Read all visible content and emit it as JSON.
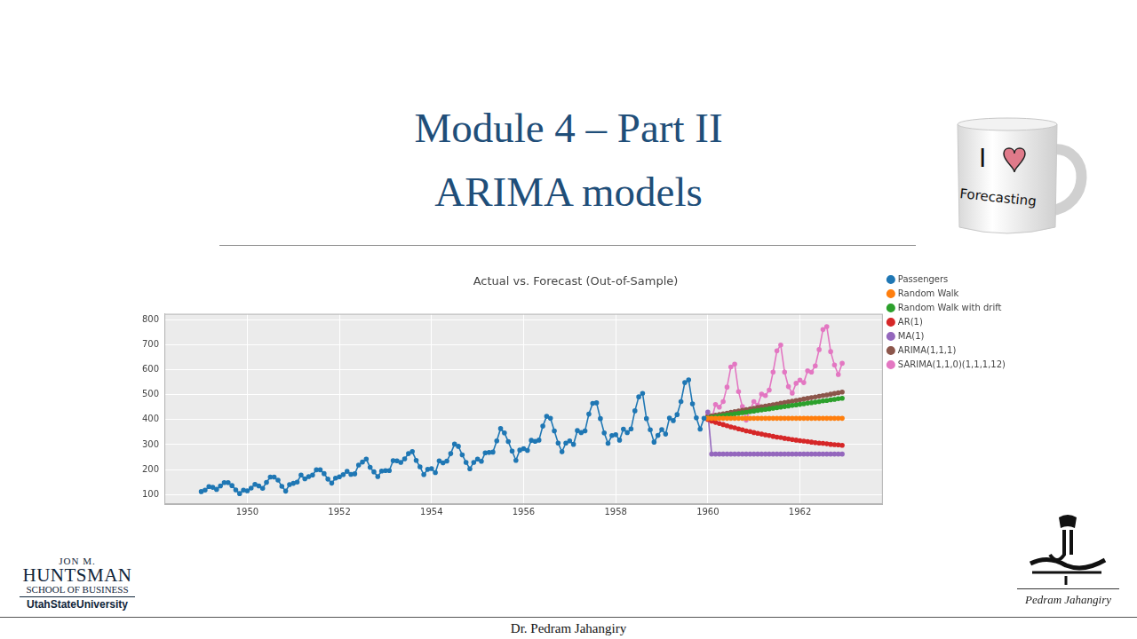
{
  "slide": {
    "title": [
      "Module 4 – Part II",
      "ARIMA models"
    ],
    "footer": "Dr. Pedram Jahangiry",
    "mug": [
      "I",
      "Forecasting"
    ],
    "school_logo": [
      "JON M.",
      "HUNTSMAN",
      "SCHOOL OF BUSINESS",
      "UtahStateUniversity"
    ],
    "signature": "Pedram Jahangiry"
  },
  "chart_data": {
    "type": "line",
    "title": "Actual vs. Forecast (Out-of-Sample)",
    "xlim": [
      1948.2,
      1963.8
    ],
    "xticks": [
      1950,
      1952,
      1954,
      1956,
      1958,
      1960,
      1962
    ],
    "ylim": [
      62,
      823
    ],
    "yticks": [
      100,
      200,
      300,
      400,
      500,
      600,
      700,
      800
    ],
    "grid": true,
    "legend": "right",
    "series": [
      {
        "name": "Passengers",
        "color": "#1f77b4",
        "marker": "circle",
        "line_style": "solid",
        "x": [
          1949,
          1949.083,
          1949.167,
          1949.25,
          1949.333,
          1949.417,
          1949.5,
          1949.583,
          1949.667,
          1949.75,
          1949.833,
          1949.917,
          1950,
          1950.083,
          1950.167,
          1950.25,
          1950.333,
          1950.417,
          1950.5,
          1950.583,
          1950.667,
          1950.75,
          1950.833,
          1950.917,
          1951,
          1951.083,
          1951.167,
          1951.25,
          1951.333,
          1951.417,
          1951.5,
          1951.583,
          1951.667,
          1951.75,
          1951.833,
          1951.917,
          1952,
          1952.083,
          1952.167,
          1952.25,
          1952.333,
          1952.417,
          1952.5,
          1952.583,
          1952.667,
          1952.75,
          1952.833,
          1952.917,
          1953,
          1953.083,
          1953.167,
          1953.25,
          1953.333,
          1953.417,
          1953.5,
          1953.583,
          1953.667,
          1953.75,
          1953.833,
          1953.917,
          1954,
          1954.083,
          1954.167,
          1954.25,
          1954.333,
          1954.417,
          1954.5,
          1954.583,
          1954.667,
          1954.75,
          1954.833,
          1954.917,
          1955,
          1955.083,
          1955.167,
          1955.25,
          1955.333,
          1955.417,
          1955.5,
          1955.583,
          1955.667,
          1955.75,
          1955.833,
          1955.917,
          1956,
          1956.083,
          1956.167,
          1956.25,
          1956.333,
          1956.417,
          1956.5,
          1956.583,
          1956.667,
          1956.75,
          1956.833,
          1956.917,
          1957,
          1957.083,
          1957.167,
          1957.25,
          1957.333,
          1957.417,
          1957.5,
          1957.583,
          1957.667,
          1957.75,
          1957.833,
          1957.917,
          1958,
          1958.083,
          1958.167,
          1958.25,
          1958.333,
          1958.417,
          1958.5,
          1958.583,
          1958.667,
          1958.75,
          1958.833,
          1958.917,
          1959,
          1959.083,
          1959.167,
          1959.25,
          1959.333,
          1959.417,
          1959.5,
          1959.583,
          1959.667,
          1959.75,
          1959.833,
          1959.917
        ],
        "values": [
          112,
          118,
          132,
          129,
          121,
          135,
          148,
          148,
          136,
          119,
          104,
          118,
          115,
          126,
          141,
          135,
          125,
          149,
          170,
          170,
          158,
          133,
          114,
          140,
          145,
          150,
          178,
          163,
          172,
          178,
          199,
          199,
          184,
          162,
          146,
          166,
          171,
          180,
          193,
          181,
          183,
          218,
          230,
          242,
          209,
          191,
          172,
          194,
          196,
          196,
          236,
          235,
          229,
          243,
          264,
          272,
          237,
          211,
          180,
          201,
          204,
          188,
          235,
          227,
          234,
          264,
          302,
          293,
          259,
          229,
          203,
          229,
          242,
          233,
          267,
          269,
          270,
          315,
          364,
          347,
          312,
          274,
          237,
          278,
          284,
          277,
          317,
          313,
          318,
          374,
          413,
          405,
          355,
          306,
          271,
          306,
          315,
          301,
          356,
          348,
          355,
          422,
          465,
          467,
          404,
          347,
          305,
          336,
          340,
          318,
          362,
          348,
          363,
          435,
          491,
          505,
          404,
          359,
          310,
          337,
          360,
          342,
          406,
          396,
          420,
          472,
          548,
          559,
          463,
          407,
          362,
          405
        ]
      },
      {
        "name": "Random Walk",
        "color": "#ff7f0e",
        "marker": "circle",
        "line_style": "solid",
        "x": [
          1960,
          1960.083,
          1960.167,
          1960.25,
          1960.333,
          1960.417,
          1960.5,
          1960.583,
          1960.667,
          1960.75,
          1960.833,
          1960.917,
          1961,
          1961.083,
          1961.167,
          1961.25,
          1961.333,
          1961.417,
          1961.5,
          1961.583,
          1961.667,
          1961.75,
          1961.833,
          1961.917,
          1962,
          1962.083,
          1962.167,
          1962.25,
          1962.333,
          1962.417,
          1962.5,
          1962.583,
          1962.667,
          1962.75,
          1962.833,
          1962.917
        ],
        "values": [
          405,
          405,
          405,
          405,
          405,
          405,
          405,
          405,
          405,
          405,
          405,
          405,
          405,
          405,
          405,
          405,
          405,
          405,
          405,
          405,
          405,
          405,
          405,
          405,
          405,
          405,
          405,
          405,
          405,
          405,
          405,
          405,
          405,
          405,
          405,
          405
        ]
      },
      {
        "name": "Random Walk with drift",
        "color": "#2ca02c",
        "marker": "circle",
        "line_style": "solid",
        "x": [
          1960,
          1960.083,
          1960.167,
          1960.25,
          1960.333,
          1960.417,
          1960.5,
          1960.583,
          1960.667,
          1960.75,
          1960.833,
          1960.917,
          1961,
          1961.083,
          1961.167,
          1961.25,
          1961.333,
          1961.417,
          1961.5,
          1961.583,
          1961.667,
          1961.75,
          1961.833,
          1961.917,
          1962,
          1962.083,
          1962.167,
          1962.25,
          1962.333,
          1962.417,
          1962.5,
          1962.583,
          1962.667,
          1962.75,
          1962.833,
          1962.917
        ],
        "values": [
          407.2,
          409.5,
          411.7,
          413.9,
          416.2,
          418.4,
          420.7,
          422.9,
          425.1,
          427.4,
          429.6,
          431.8,
          434.1,
          436.3,
          438.6,
          440.8,
          443.0,
          445.3,
          447.5,
          449.7,
          452.0,
          454.2,
          456.5,
          458.7,
          460.9,
          463.2,
          465.4,
          467.6,
          469.9,
          472.1,
          474.4,
          476.6,
          478.8,
          481.1,
          483.3,
          485.5
        ]
      },
      {
        "name": "AR(1)",
        "color": "#d62728",
        "marker": "circle",
        "line_style": "solid",
        "x": [
          1960,
          1960.083,
          1960.167,
          1960.25,
          1960.333,
          1960.417,
          1960.5,
          1960.583,
          1960.667,
          1960.75,
          1960.833,
          1960.917,
          1961,
          1961.083,
          1961.167,
          1961.25,
          1961.333,
          1961.417,
          1961.5,
          1961.583,
          1961.667,
          1961.75,
          1961.833,
          1961.917,
          1962,
          1962.083,
          1962.167,
          1962.25,
          1962.333,
          1962.417,
          1962.5,
          1962.583,
          1962.667,
          1962.75,
          1962.833,
          1962.917
        ],
        "values": [
          400,
          394,
          389,
          384,
          380,
          375,
          371,
          367,
          363,
          359,
          355,
          352,
          348,
          345,
          342,
          339,
          336,
          333,
          330,
          328,
          325,
          323,
          320,
          318,
          316,
          314,
          312,
          310,
          308,
          306,
          305,
          303,
          301,
          300,
          299,
          297
        ]
      },
      {
        "name": "MA(1)",
        "color": "#9467bd",
        "marker": "circle",
        "line_style": "solid",
        "x": [
          1960,
          1960.083,
          1960.167,
          1960.25,
          1960.333,
          1960.417,
          1960.5,
          1960.583,
          1960.667,
          1960.75,
          1960.833,
          1960.917,
          1961,
          1961.083,
          1961.167,
          1961.25,
          1961.333,
          1961.417,
          1961.5,
          1961.583,
          1961.667,
          1961.75,
          1961.833,
          1961.917,
          1962,
          1962.083,
          1962.167,
          1962.25,
          1962.333,
          1962.417,
          1962.5,
          1962.583,
          1962.667,
          1962.75,
          1962.833,
          1962.917
        ],
        "values": [
          430,
          262,
          262,
          262,
          262,
          262,
          262,
          262,
          262,
          262,
          262,
          262,
          262,
          262,
          262,
          262,
          262,
          262,
          262,
          262,
          262,
          262,
          262,
          262,
          262,
          262,
          262,
          262,
          262,
          262,
          262,
          262,
          262,
          262,
          262,
          262
        ]
      },
      {
        "name": "ARIMA(1,1,1)",
        "color": "#8c564b",
        "marker": "circle",
        "line_style": "solid",
        "x": [
          1960,
          1960.083,
          1960.167,
          1960.25,
          1960.333,
          1960.417,
          1960.5,
          1960.583,
          1960.667,
          1960.75,
          1960.833,
          1960.917,
          1961,
          1961.083,
          1961.167,
          1961.25,
          1961.333,
          1961.417,
          1961.5,
          1961.583,
          1961.667,
          1961.75,
          1961.833,
          1961.917,
          1962,
          1962.083,
          1962.167,
          1962.25,
          1962.333,
          1962.417,
          1962.5,
          1962.583,
          1962.667,
          1962.75,
          1962.833,
          1962.917
        ],
        "values": [
          412,
          414.8,
          417.6,
          420.4,
          423.2,
          426,
          428.8,
          431.6,
          434.4,
          437.2,
          440,
          442.8,
          445.6,
          448.4,
          451.2,
          454,
          456.8,
          459.6,
          462.4,
          465.2,
          468,
          470.8,
          473.6,
          476.4,
          479.2,
          482,
          484.8,
          487.6,
          490.4,
          493.2,
          496,
          498.8,
          501.6,
          504.4,
          507.2,
          510
        ]
      },
      {
        "name": "SARIMA(1,1,0)(1,1,1,12)",
        "color": "#e377c2",
        "marker": "circle",
        "line_style": "solid",
        "x": [
          1960,
          1960.083,
          1960.167,
          1960.25,
          1960.333,
          1960.417,
          1960.5,
          1960.583,
          1960.667,
          1960.75,
          1960.833,
          1960.917,
          1961,
          1961.083,
          1961.167,
          1961.25,
          1961.333,
          1961.417,
          1961.5,
          1961.583,
          1961.667,
          1961.75,
          1961.833,
          1961.917,
          1962,
          1962.083,
          1962.167,
          1962.25,
          1962.333,
          1962.417,
          1962.5,
          1962.583,
          1962.667,
          1962.75,
          1962.833,
          1962.917
        ],
        "values": [
          420,
          402,
          460,
          450,
          472,
          530,
          610,
          622,
          512,
          452,
          398,
          440,
          472,
          458,
          502,
          496,
          518,
          590,
          675,
          698,
          590,
          532,
          506,
          545,
          558,
          548,
          595,
          590,
          615,
          680,
          760,
          772,
          672,
          618,
          580,
          625
        ]
      }
    ]
  }
}
